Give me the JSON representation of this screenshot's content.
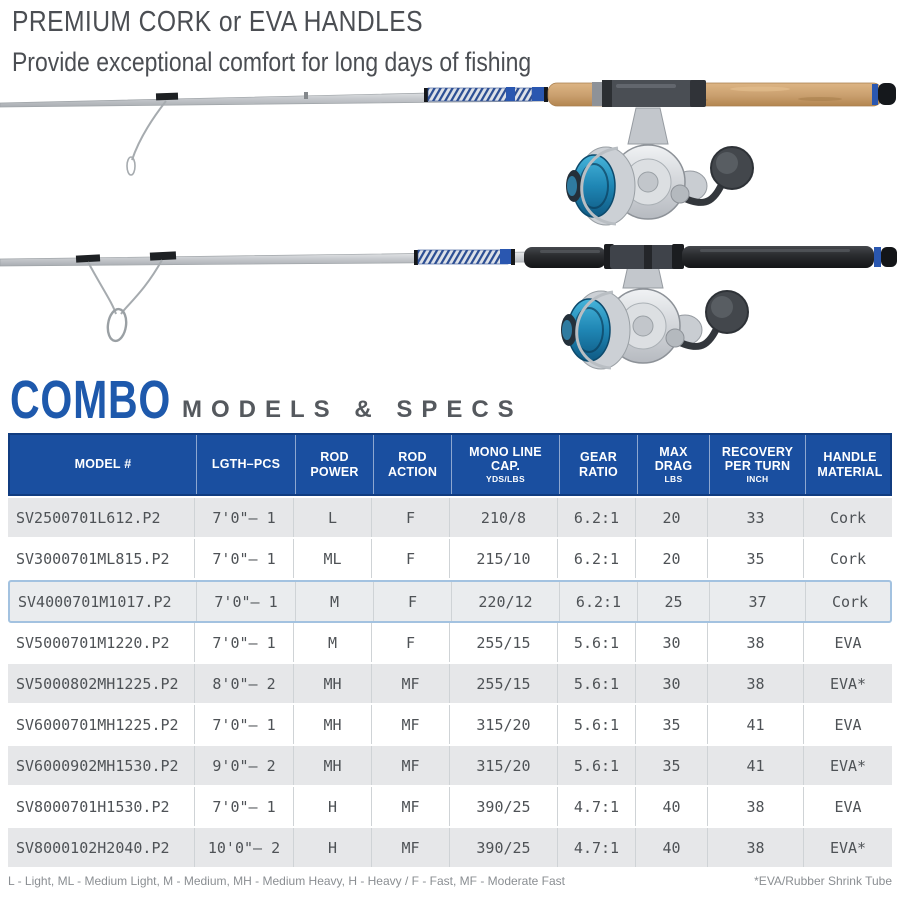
{
  "heading": {
    "title": "PREMIUM CORK or EVA HANDLES",
    "subtitle": "Provide exceptional comfort for long days of fishing"
  },
  "section": {
    "combo": "COMBO",
    "rest": "MODELS & SPECS"
  },
  "illustration": {
    "rod_top": "spinning rod with cork handle and silver/blue spinning reel",
    "rod_bottom": "spinning rod with black EVA handle and silver/blue spinning reel"
  },
  "colors": {
    "header_blue": "#1a4fa0",
    "combo_blue": "#1e59ac",
    "row_alt": "#e6e7e9",
    "highlight_border": "#a3c2e0",
    "highlight_bg": "#eaecee",
    "table_text": "#4e5256",
    "heading_gray": "#4b4e53",
    "note_gray": "#8a8e92",
    "section_gray": "#55595e"
  },
  "table": {
    "columns": [
      {
        "label": "MODEL #",
        "sub": ""
      },
      {
        "label": "LGTH–PCS",
        "sub": ""
      },
      {
        "label": "ROD POWER",
        "sub": ""
      },
      {
        "label": "ROD ACTION",
        "sub": ""
      },
      {
        "label": "MONO LINE CAP.",
        "sub": "YDS/LBS"
      },
      {
        "label": "GEAR RATIO",
        "sub": ""
      },
      {
        "label": "MAX DRAG",
        "sub": "LBS"
      },
      {
        "label": "RECOVERY PER TURN",
        "sub": "INCH"
      },
      {
        "label": "HANDLE MATERIAL",
        "sub": ""
      }
    ],
    "rows": [
      {
        "highlight": false,
        "cells": [
          "SV2500701L612.P2",
          "7'0\"– 1",
          "L",
          "F",
          "210/8",
          "6.2:1",
          "20",
          "33",
          "Cork"
        ]
      },
      {
        "highlight": false,
        "cells": [
          "SV3000701ML815.P2",
          "7'0\"– 1",
          "ML",
          "F",
          "215/10",
          "6.2:1",
          "20",
          "35",
          "Cork"
        ]
      },
      {
        "highlight": true,
        "cells": [
          "SV4000701M1017.P2",
          "7'0\"– 1",
          "M",
          "F",
          "220/12",
          "6.2:1",
          "25",
          "37",
          "Cork"
        ]
      },
      {
        "highlight": false,
        "cells": [
          "SV5000701M1220.P2",
          "7'0\"– 1",
          "M",
          "F",
          "255/15",
          "5.6:1",
          "30",
          "38",
          "EVA"
        ]
      },
      {
        "highlight": false,
        "cells": [
          "SV5000802MH1225.P2",
          "8'0\"– 2",
          "MH",
          "MF",
          "255/15",
          "5.6:1",
          "30",
          "38",
          "EVA*"
        ]
      },
      {
        "highlight": false,
        "cells": [
          "SV6000701MH1225.P2",
          "7'0\"– 1",
          "MH",
          "MF",
          "315/20",
          "5.6:1",
          "35",
          "41",
          "EVA"
        ]
      },
      {
        "highlight": false,
        "cells": [
          "SV6000902MH1530.P2",
          "9'0\"– 2",
          "MH",
          "MF",
          "315/20",
          "5.6:1",
          "35",
          "41",
          "EVA*"
        ]
      },
      {
        "highlight": false,
        "cells": [
          "SV8000701H1530.P2",
          "7'0\"– 1",
          "H",
          "MF",
          "390/25",
          "4.7:1",
          "40",
          "38",
          "EVA"
        ]
      },
      {
        "highlight": false,
        "cells": [
          "SV8000102H2040.P2",
          "10'0\"– 2",
          "H",
          "MF",
          "390/25",
          "4.7:1",
          "40",
          "38",
          "EVA*"
        ]
      }
    ]
  },
  "footnotes": {
    "left": "L - Light, ML - Medium Light, M - Medium, MH - Medium Heavy, H - Heavy / F - Fast, MF - Moderate Fast",
    "right": "*EVA/Rubber Shrink Tube"
  }
}
